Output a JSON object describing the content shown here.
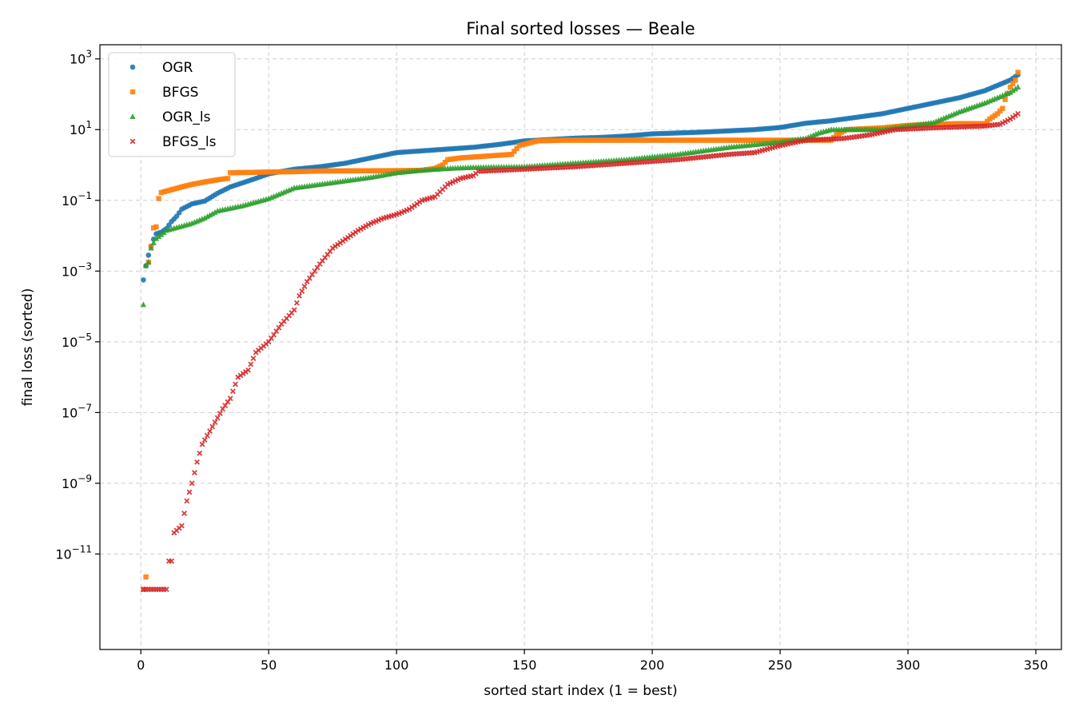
{
  "chart_data": {
    "type": "scatter",
    "title": "Final sorted losses — Beale",
    "xlabel": "sorted start index (1 = best)",
    "ylabel": "final loss (sorted)",
    "xlim": [
      -16,
      360
    ],
    "ylim_log10": [
      -13.7,
      3.4
    ],
    "y_scale": "log",
    "grid": true,
    "legend_position": "top-left",
    "x_ticks": [
      0,
      50,
      100,
      150,
      200,
      250,
      300,
      350
    ],
    "y_ticks": [
      {
        "exp": -11,
        "label": "−11"
      },
      {
        "exp": -9,
        "label": "−9"
      },
      {
        "exp": -7,
        "label": "−7"
      },
      {
        "exp": -5,
        "label": "−5"
      },
      {
        "exp": -3,
        "label": "−3"
      },
      {
        "exp": -1,
        "label": "−1"
      },
      {
        "exp": 1,
        "label": "1"
      },
      {
        "exp": 3,
        "label": "3"
      }
    ],
    "y_tick_base": "10",
    "n_points": 343,
    "series": [
      {
        "name": "OGR",
        "color": "#1f77b4",
        "marker": "circle",
        "log10_anchors": [
          [
            1,
            -3.25
          ],
          [
            2,
            -2.85
          ],
          [
            3,
            -2.55
          ],
          [
            4,
            -2.3
          ],
          [
            5,
            -2.1
          ],
          [
            6,
            -1.95
          ],
          [
            8,
            -1.9
          ],
          [
            10,
            -1.8
          ],
          [
            12,
            -1.6
          ],
          [
            14,
            -1.45
          ],
          [
            16,
            -1.25
          ],
          [
            20,
            -1.1
          ],
          [
            25,
            -1.02
          ],
          [
            30,
            -0.8
          ],
          [
            35,
            -0.62
          ],
          [
            40,
            -0.5
          ],
          [
            45,
            -0.38
          ],
          [
            50,
            -0.25
          ],
          [
            60,
            -0.12
          ],
          [
            70,
            -0.05
          ],
          [
            80,
            0.05
          ],
          [
            90,
            0.2
          ],
          [
            100,
            0.35
          ],
          [
            110,
            0.4
          ],
          [
            120,
            0.45
          ],
          [
            130,
            0.5
          ],
          [
            140,
            0.58
          ],
          [
            150,
            0.68
          ],
          [
            160,
            0.72
          ],
          [
            170,
            0.76
          ],
          [
            180,
            0.78
          ],
          [
            190,
            0.82
          ],
          [
            200,
            0.88
          ],
          [
            220,
            0.93
          ],
          [
            240,
            1.0
          ],
          [
            250,
            1.06
          ],
          [
            260,
            1.18
          ],
          [
            270,
            1.25
          ],
          [
            280,
            1.35
          ],
          [
            290,
            1.45
          ],
          [
            300,
            1.6
          ],
          [
            310,
            1.75
          ],
          [
            320,
            1.9
          ],
          [
            330,
            2.1
          ],
          [
            340,
            2.4
          ],
          [
            343,
            2.55
          ]
        ]
      },
      {
        "name": "BFGS",
        "color": "#ff7f0e",
        "marker": "square",
        "log10_anchors": [
          [
            1,
            -12.0
          ],
          [
            2,
            -11.65
          ],
          [
            3,
            -2.75
          ],
          [
            4,
            -2.3
          ],
          [
            5,
            -1.78
          ],
          [
            6,
            -1.75
          ],
          [
            7,
            -0.95
          ],
          [
            8,
            -0.78
          ],
          [
            12,
            -0.7
          ],
          [
            16,
            -0.62
          ],
          [
            20,
            -0.55
          ],
          [
            25,
            -0.48
          ],
          [
            30,
            -0.42
          ],
          [
            34,
            -0.38
          ],
          [
            35,
            -0.22
          ],
          [
            50,
            -0.2
          ],
          [
            60,
            -0.19
          ],
          [
            70,
            -0.17
          ],
          [
            100,
            -0.16
          ],
          [
            110,
            -0.15
          ],
          [
            115,
            -0.1
          ],
          [
            118,
            0.0
          ],
          [
            120,
            0.15
          ],
          [
            125,
            0.2
          ],
          [
            135,
            0.25
          ],
          [
            145,
            0.3
          ],
          [
            148,
            0.55
          ],
          [
            155,
            0.68
          ],
          [
            165,
            0.7
          ],
          [
            200,
            0.7
          ],
          [
            270,
            0.7
          ],
          [
            272,
            0.85
          ],
          [
            276,
            1.0
          ],
          [
            290,
            1.05
          ],
          [
            300,
            1.12
          ],
          [
            310,
            1.15
          ],
          [
            320,
            1.17
          ],
          [
            330,
            1.17
          ],
          [
            332,
            1.3
          ],
          [
            335,
            1.45
          ],
          [
            337,
            1.6
          ],
          [
            338,
            1.85
          ],
          [
            340,
            2.2
          ],
          [
            342,
            2.4
          ],
          [
            343,
            2.62
          ]
        ]
      },
      {
        "name": "OGR_ls",
        "color": "#2ca02c",
        "marker": "triangle",
        "log10_anchors": [
          [
            1,
            -3.95
          ],
          [
            2,
            -2.85
          ],
          [
            3,
            -2.75
          ],
          [
            4,
            -2.35
          ],
          [
            5,
            -2.2
          ],
          [
            6,
            -2.08
          ],
          [
            8,
            -1.97
          ],
          [
            10,
            -1.85
          ],
          [
            15,
            -1.75
          ],
          [
            20,
            -1.65
          ],
          [
            25,
            -1.5
          ],
          [
            30,
            -1.3
          ],
          [
            40,
            -1.15
          ],
          [
            50,
            -0.95
          ],
          [
            55,
            -0.8
          ],
          [
            60,
            -0.65
          ],
          [
            70,
            -0.55
          ],
          [
            80,
            -0.45
          ],
          [
            90,
            -0.35
          ],
          [
            100,
            -0.22
          ],
          [
            110,
            -0.15
          ],
          [
            120,
            -0.1
          ],
          [
            130,
            -0.07
          ],
          [
            150,
            -0.05
          ],
          [
            170,
            0.05
          ],
          [
            190,
            0.15
          ],
          [
            210,
            0.3
          ],
          [
            230,
            0.5
          ],
          [
            250,
            0.65
          ],
          [
            260,
            0.75
          ],
          [
            265,
            0.9
          ],
          [
            270,
            1.0
          ],
          [
            290,
            1.0
          ],
          [
            300,
            1.1
          ],
          [
            310,
            1.2
          ],
          [
            320,
            1.5
          ],
          [
            330,
            1.75
          ],
          [
            340,
            2.05
          ],
          [
            343,
            2.2
          ]
        ]
      },
      {
        "name": "BFGS_ls",
        "color": "#d62728",
        "marker": "x",
        "log10_anchors": [
          [
            1,
            -12.0
          ],
          [
            10,
            -12.0
          ],
          [
            11,
            -11.2
          ],
          [
            12,
            -11.2
          ],
          [
            13,
            -10.4
          ],
          [
            16,
            -10.2
          ],
          [
            18,
            -9.5
          ],
          [
            20,
            -9.0
          ],
          [
            22,
            -8.4
          ],
          [
            24,
            -7.9
          ],
          [
            28,
            -7.4
          ],
          [
            32,
            -6.9
          ],
          [
            35,
            -6.6
          ],
          [
            38,
            -6.0
          ],
          [
            42,
            -5.8
          ],
          [
            45,
            -5.3
          ],
          [
            50,
            -5.0
          ],
          [
            55,
            -4.5
          ],
          [
            60,
            -4.1
          ],
          [
            62,
            -3.7
          ],
          [
            65,
            -3.3
          ],
          [
            70,
            -2.8
          ],
          [
            75,
            -2.35
          ],
          [
            80,
            -2.1
          ],
          [
            85,
            -1.85
          ],
          [
            90,
            -1.65
          ],
          [
            95,
            -1.5
          ],
          [
            100,
            -1.4
          ],
          [
            105,
            -1.25
          ],
          [
            110,
            -1.0
          ],
          [
            115,
            -0.9
          ],
          [
            120,
            -0.55
          ],
          [
            125,
            -0.38
          ],
          [
            130,
            -0.3
          ],
          [
            132,
            -0.18
          ],
          [
            150,
            -0.12
          ],
          [
            170,
            -0.05
          ],
          [
            190,
            0.05
          ],
          [
            210,
            0.15
          ],
          [
            230,
            0.3
          ],
          [
            240,
            0.35
          ],
          [
            250,
            0.55
          ],
          [
            260,
            0.7
          ],
          [
            275,
            0.75
          ],
          [
            285,
            0.85
          ],
          [
            295,
            1.0
          ],
          [
            310,
            1.05
          ],
          [
            330,
            1.1
          ],
          [
            336,
            1.15
          ],
          [
            340,
            1.3
          ],
          [
            343,
            1.45
          ]
        ]
      }
    ]
  }
}
